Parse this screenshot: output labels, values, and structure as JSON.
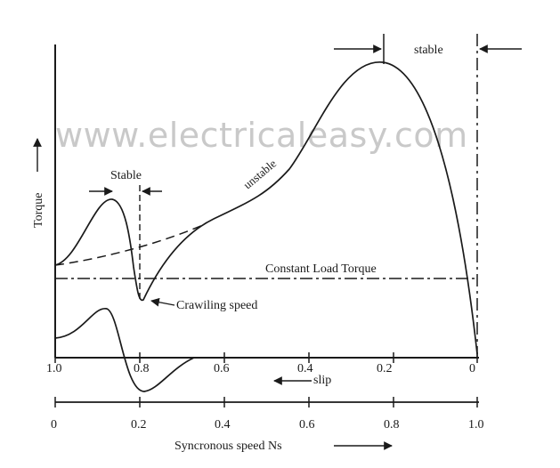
{
  "watermark": "www.electricaleasy.com",
  "labels": {
    "torque": "Torque",
    "stable_right": "stable",
    "stable_left": "Stable",
    "unstable": "unstable",
    "constant_load": "Constant Load Torque",
    "crawling": "Crawiling speed",
    "slip": "slip",
    "sync_speed": "Syncronous speed Ns"
  },
  "slip_ticks": [
    "1.0",
    "0.8",
    "0.6",
    "0.4",
    "0.2",
    "0"
  ],
  "speed_ticks": [
    "0",
    "0.2",
    "0.4",
    "0.6",
    "0.8",
    "1.0"
  ],
  "colors": {
    "ink": "#1a1a1a",
    "watermark": "#c9c9c9"
  }
}
